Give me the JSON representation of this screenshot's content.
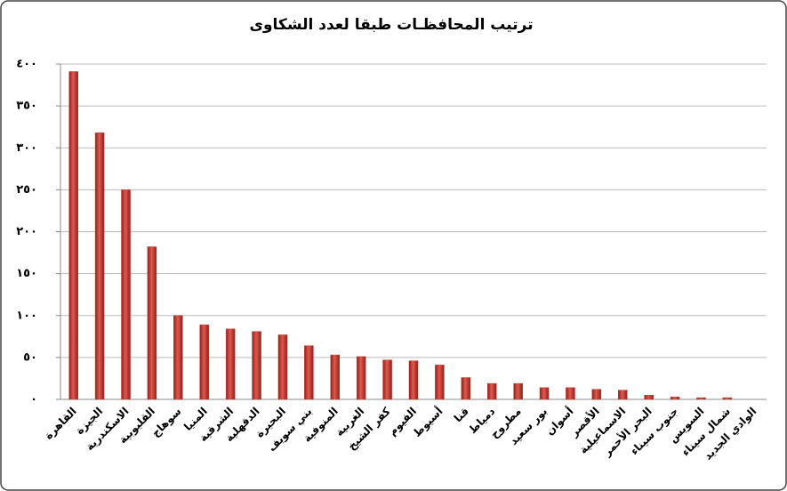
{
  "chart_data": {
    "type": "bar",
    "title": "ترتيب المحافظـات طبقا لعدد الشكاوى",
    "categories": [
      "القاهرة",
      "الجيزة",
      "الاسكندرية",
      "القليوبية",
      "سوهاج",
      "المنيا",
      "الشرقية",
      "الدقهلية",
      "البحيرة",
      "بني سويف",
      "المنوفية",
      "الغربية",
      "كفر الشيخ",
      "الفيوم",
      "أسيوط",
      "قنا",
      "دمياط",
      "مطروح",
      "بور سعيد",
      "أسوان",
      "الأقصر",
      "الاسماعيلية",
      "البحر الأحمر",
      "جنوب سيناء",
      "السويس",
      "شمال سيناء",
      "الوادي الجديد"
    ],
    "values": [
      391,
      318,
      250,
      182,
      100,
      89,
      84,
      81,
      77,
      64,
      53,
      51,
      47,
      46,
      41,
      26,
      19,
      19,
      14,
      14,
      12,
      11,
      5,
      3,
      2,
      2,
      0
    ],
    "color": "#c0392b",
    "ylim": [
      0,
      400
    ],
    "yticks": [
      {
        "value": 0,
        "label": "٠"
      },
      {
        "value": 50,
        "label": "٥٠"
      },
      {
        "value": 100,
        "label": "١٠٠"
      },
      {
        "value": 150,
        "label": "١٥٠"
      },
      {
        "value": 200,
        "label": "٢٠٠"
      },
      {
        "value": 250,
        "label": "٢٥٠"
      },
      {
        "value": 300,
        "label": "٣٠٠"
      },
      {
        "value": 350,
        "label": "٣٥٠"
      },
      {
        "value": 400,
        "label": "٤٠٠"
      }
    ],
    "grid": true
  }
}
